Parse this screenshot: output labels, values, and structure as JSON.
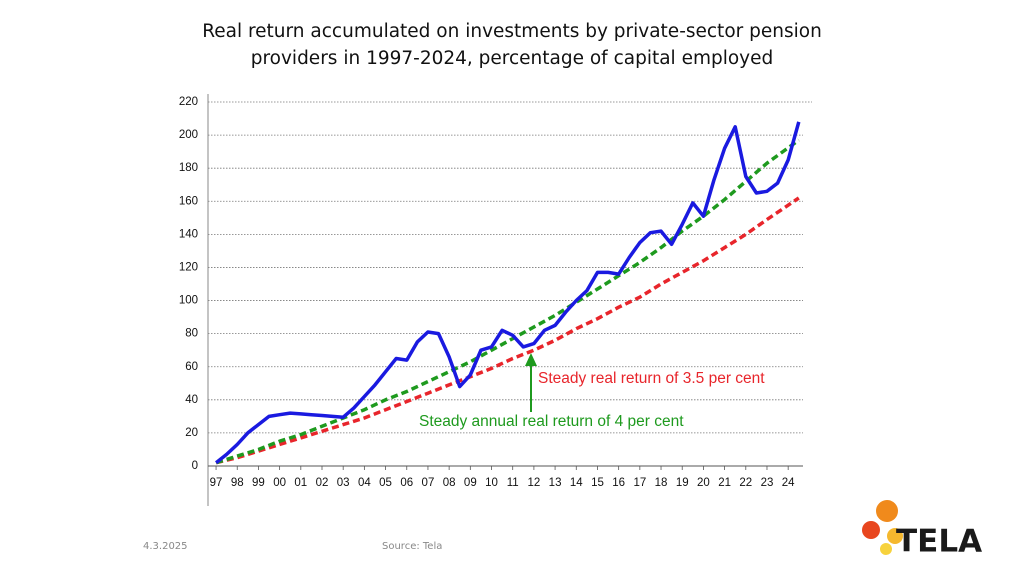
{
  "chart_data": {
    "type": "line",
    "title": "Real return accumulated on investments by private-sector pension providers in 1997-2024, percentage of capital employed",
    "xlim": [
      -0.38,
      27.7
    ],
    "xticks": [
      {
        "value": 0,
        "label": "97"
      },
      {
        "value": 1,
        "label": "98"
      },
      {
        "value": 2,
        "label": "99"
      },
      {
        "value": 3,
        "label": "00"
      },
      {
        "value": 4,
        "label": "01"
      },
      {
        "value": 5,
        "label": "02"
      },
      {
        "value": 6,
        "label": "03"
      },
      {
        "value": 7,
        "label": "04"
      },
      {
        "value": 8,
        "label": "05"
      },
      {
        "value": 9,
        "label": "06"
      },
      {
        "value": 10,
        "label": "07"
      },
      {
        "value": 11,
        "label": "08"
      },
      {
        "value": 12,
        "label": "09"
      },
      {
        "value": 13,
        "label": "10"
      },
      {
        "value": 14,
        "label": "11"
      },
      {
        "value": 15,
        "label": "12"
      },
      {
        "value": 16,
        "label": "13"
      },
      {
        "value": 17,
        "label": "14"
      },
      {
        "value": 18,
        "label": "15"
      },
      {
        "value": 19,
        "label": "16"
      },
      {
        "value": 20,
        "label": "17"
      },
      {
        "value": 21,
        "label": "18"
      },
      {
        "value": 22,
        "label": "19"
      },
      {
        "value": 23,
        "label": "20"
      },
      {
        "value": 24,
        "label": "21"
      },
      {
        "value": 25,
        "label": "22"
      },
      {
        "value": 26,
        "label": "23"
      },
      {
        "value": 27,
        "label": "24"
      }
    ],
    "ylim": [
      0,
      220
    ],
    "yticks": [
      0,
      20,
      40,
      60,
      80,
      100,
      120,
      140,
      160,
      180,
      200,
      220
    ],
    "grid": true,
    "series": [
      {
        "color": "#e8252b",
        "style": "dashed",
        "x": [
          0,
          1,
          2,
          3,
          4,
          5,
          6,
          7,
          8,
          9,
          10,
          11,
          12,
          13,
          14,
          15,
          16,
          17,
          18,
          19,
          20,
          21,
          22,
          23,
          24,
          25,
          26,
          27.5
        ],
        "values": [
          2,
          5,
          9,
          13,
          17,
          21,
          25,
          29,
          34,
          39,
          44,
          49,
          54,
          59,
          65,
          70,
          76,
          83,
          89,
          96,
          102,
          110,
          117,
          124,
          132,
          140,
          149,
          162
        ]
      },
      {
        "color": "#1e9a1e",
        "style": "dashed",
        "x": [
          0,
          1,
          2,
          3,
          4,
          5,
          6,
          7,
          8,
          9,
          10,
          11,
          12,
          13,
          14,
          15,
          16,
          17,
          18,
          19,
          20,
          21,
          22,
          23,
          24,
          25,
          26,
          27.5
        ],
        "values": [
          2,
          6,
          10,
          15,
          19,
          24,
          29,
          34,
          40,
          45,
          51,
          57,
          63,
          70,
          77,
          84,
          91,
          99,
          107,
          115,
          123,
          132,
          142,
          151,
          161,
          172,
          183,
          197
        ]
      },
      {
        "color": "#1a1ae0",
        "style": "solid",
        "x": [
          0,
          0.5,
          1,
          1.5,
          2,
          2.5,
          3,
          3.5,
          4,
          4.5,
          5,
          5.5,
          6,
          6.5,
          7,
          7.5,
          8,
          8.5,
          9,
          9.5,
          10,
          10.5,
          11,
          11.5,
          12,
          12.5,
          13,
          13.5,
          14,
          14.5,
          15,
          15.5,
          16,
          16.5,
          17,
          17.5,
          18,
          18.5,
          19,
          19.5,
          20,
          20.5,
          21,
          21.5,
          22,
          22.5,
          23,
          23.5,
          24,
          24.5,
          25,
          25.5,
          26,
          26.5,
          27,
          27.5
        ],
        "values": [
          2,
          7,
          13,
          20,
          25,
          30,
          31,
          32,
          31.5,
          31,
          30.5,
          30,
          29.5,
          35,
          42,
          49,
          57,
          65,
          64,
          75,
          81,
          80,
          66,
          48,
          55,
          70,
          72,
          82,
          79,
          72,
          74,
          82,
          85,
          93,
          100,
          106,
          117,
          117,
          116,
          126,
          135,
          141,
          142,
          134,
          146,
          159,
          151,
          173,
          192,
          205,
          175,
          165,
          166,
          171,
          185,
          208
        ]
      }
    ],
    "annotations": [
      {
        "text": "Steady real return of 3.5 per cent",
        "color": "#e8252b"
      },
      {
        "text": "Steady annual real return of 4 per cent",
        "color": "#1e9a1e"
      }
    ]
  },
  "footer": {
    "date": "4.3.2025",
    "source": "Source: Tela",
    "logo": "TELA"
  }
}
